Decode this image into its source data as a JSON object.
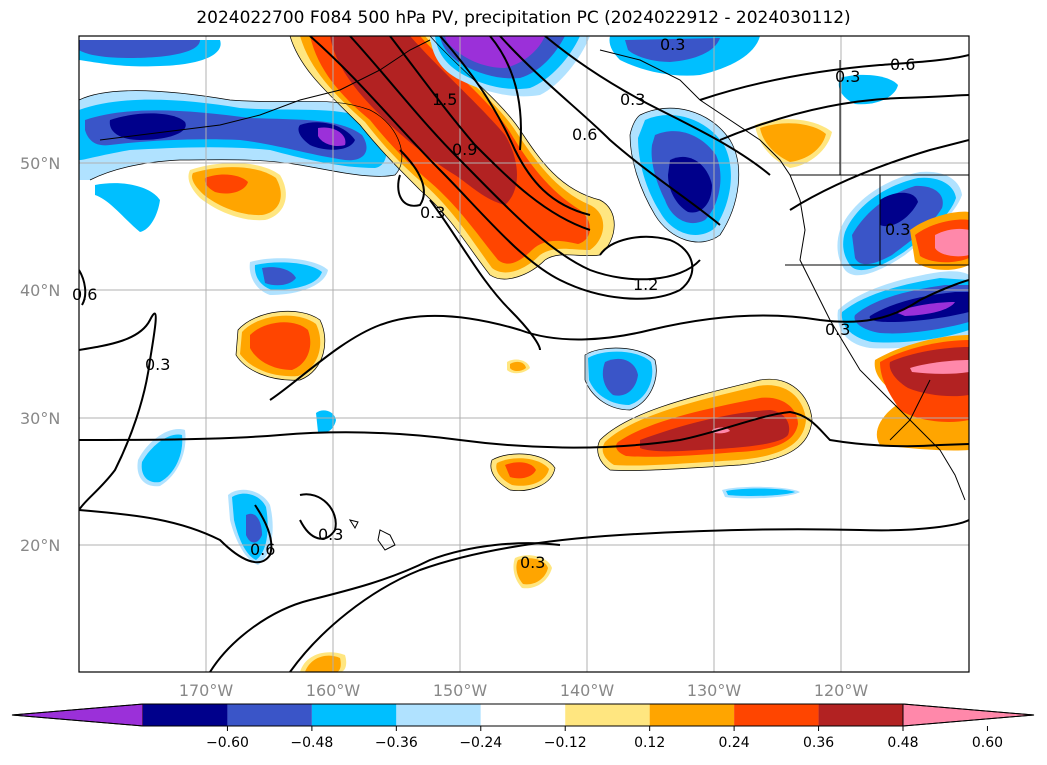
{
  "title": "2024022700 F084 500 hPa PV, precipitation PC (2024022912 - 2024030112)",
  "lat_labels": [
    "50°N",
    "40°N",
    "30°N",
    "20°N"
  ],
  "lon_labels": [
    "170°W",
    "160°W",
    "150°W",
    "140°W",
    "130°W",
    "120°W"
  ],
  "colorbar": {
    "colors": [
      "#9b30d9",
      "#00008b",
      "#3a55c8",
      "#00bfff",
      "#b0e2ff",
      "#ffffff",
      "#ffe680",
      "#ffa500",
      "#ff4500",
      "#b22222",
      "#ff88aa"
    ],
    "ticks": [
      "−0.60",
      "−0.48",
      "−0.36",
      "−0.24",
      "−0.12",
      "0.12",
      "0.24",
      "0.36",
      "0.48",
      "0.60"
    ]
  },
  "contour_labels": [
    "0.3",
    "0.6",
    "1.5",
    "0.9",
    "0.3",
    "0.6",
    "0.3",
    "0.6",
    "1.2",
    "0.3",
    "0.3",
    "0.3",
    "0.3",
    "0.3",
    "0.6",
    "0.3"
  ]
}
